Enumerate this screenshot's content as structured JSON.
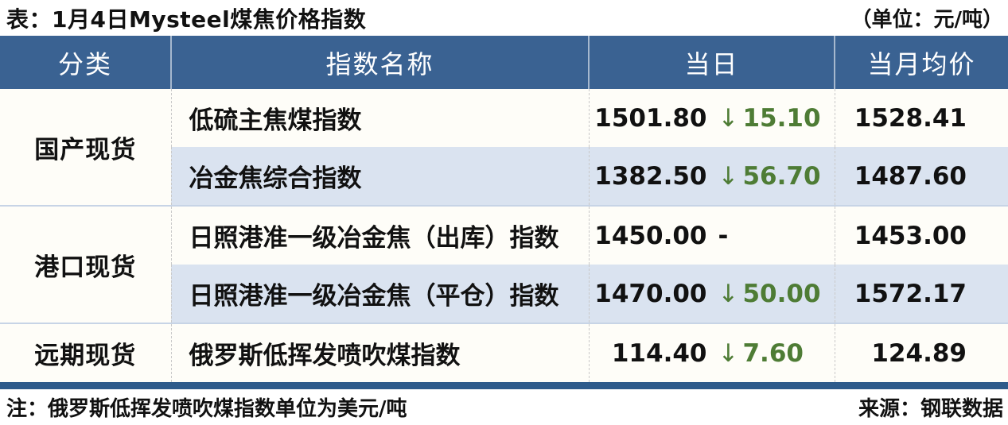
{
  "caption": {
    "title": "表：1月4日Mysteel煤焦价格指数",
    "unit_note": "（单位：元/吨）"
  },
  "table": {
    "headers": {
      "category": "分类",
      "index_name": "指数名称",
      "daily": "当日",
      "monthly_avg": "当月均价"
    },
    "groups": [
      {
        "category": "国产现货",
        "rows": [
          {
            "name": "低硫主焦煤指数",
            "daily": "1501.80",
            "direction": "down",
            "change": "15.10",
            "monthly_avg": "1528.41"
          },
          {
            "name": "冶金焦综合指数",
            "daily": "1382.50",
            "direction": "down",
            "change": "56.70",
            "monthly_avg": "1487.60"
          }
        ]
      },
      {
        "category": "港口现货",
        "rows": [
          {
            "name": "日照港准一级冶金焦（出库）指数",
            "daily": "1450.00",
            "direction": "flat",
            "change": "-",
            "monthly_avg": "1453.00"
          },
          {
            "name": "日照港准一级冶金焦（平仓）指数",
            "daily": "1470.00",
            "direction": "down",
            "change": "50.00",
            "monthly_avg": "1572.17"
          }
        ]
      },
      {
        "category": "远期现货",
        "rows": [
          {
            "name": "俄罗斯低挥发喷吹煤指数",
            "daily": "114.40",
            "direction": "down",
            "change": "7.60",
            "monthly_avg": "124.89"
          }
        ]
      }
    ]
  },
  "icons": {
    "down_arrow": "↓"
  },
  "colors": {
    "header_bg": "#3A6292",
    "bottom_bar": "#2E5B8B",
    "row_alt_bg": "#DAE3F0",
    "row_bg": "#FEFDF8",
    "down_green": "#4E7C35",
    "text": "#111111"
  },
  "footer": {
    "note": "注：俄罗斯低挥发喷吹煤指数单位为美元/吨",
    "source": "来源：钢联数据"
  }
}
